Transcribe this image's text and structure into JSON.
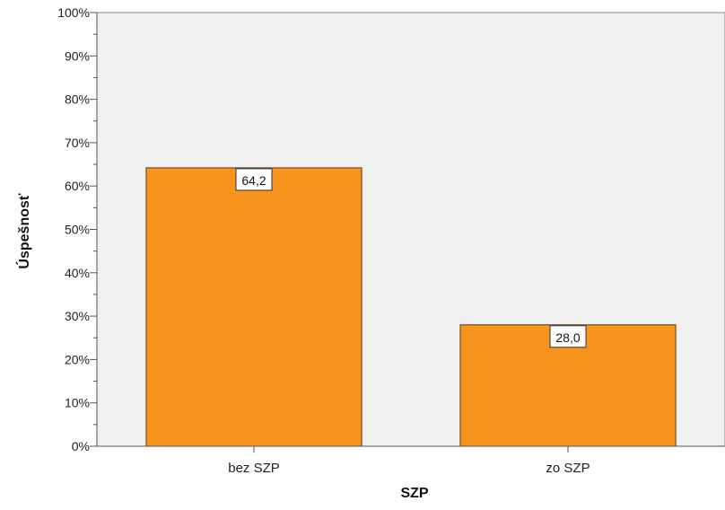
{
  "chart_data": {
    "type": "bar",
    "title": "",
    "xlabel": "SZP",
    "ylabel": "Úspešnosť",
    "categories": [
      "bez SZP",
      "zo SZP"
    ],
    "values": [
      64.2,
      28.0
    ],
    "data_labels": [
      "64,2",
      "28,0"
    ],
    "ylim": [
      0,
      100
    ],
    "yticks": [
      0,
      10,
      20,
      30,
      40,
      50,
      60,
      70,
      80,
      90,
      100
    ],
    "ytick_labels": [
      "0%",
      "10%",
      "20%",
      "30%",
      "40%",
      "50%",
      "60%",
      "70%",
      "80%",
      "90%",
      "100%"
    ],
    "grid": false,
    "legend": "none",
    "colors": {
      "bar_fill": "#f7941d",
      "bar_stroke": "#5a3a10",
      "plot_background": "#f0f0f0",
      "axis": "#555555"
    }
  }
}
